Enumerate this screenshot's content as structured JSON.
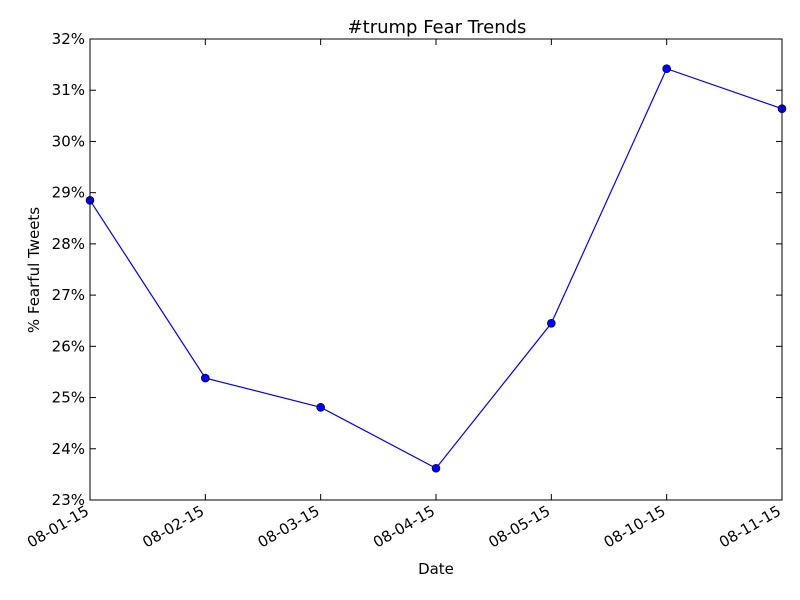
{
  "chart_data": {
    "type": "line",
    "title": "#trump Fear Trends",
    "xlabel": "Date",
    "ylabel": "% Fearful Tweets",
    "categories": [
      "08-01-15",
      "08-02-15",
      "08-03-15",
      "08-04-15",
      "08-05-15",
      "08-10-15",
      "08-11-15"
    ],
    "series": [
      {
        "values": [
          28.85,
          25.38,
          24.81,
          23.62,
          26.45,
          31.42,
          30.64
        ],
        "color": "#0000ff",
        "marker": "circle"
      }
    ],
    "ylim": [
      23,
      32
    ],
    "yticks": [
      23,
      24,
      25,
      26,
      27,
      28,
      29,
      30,
      31,
      32
    ],
    "ytick_labels": [
      "23%",
      "24%",
      "25%",
      "26%",
      "27%",
      "28%",
      "29%",
      "30%",
      "31%",
      "32%"
    ],
    "grid": false,
    "legend": "none"
  }
}
